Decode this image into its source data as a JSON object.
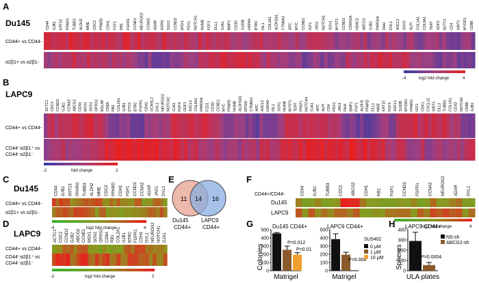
{
  "panels": {
    "A": {
      "letter": "A",
      "title": "Du145",
      "rows": [
        "CD44+ vs CD44-",
        "α2β1+ vs α2β1-"
      ],
      "genes": [
        "CD44",
        "GJB1",
        "KRT15",
        "PPARG",
        "TUBB3",
        "ALDH2",
        "MME",
        "CDC2",
        "PPARD",
        "CDH1",
        "FGF1",
        "RB1",
        "FGFR1",
        "CCNE1",
        "NEUROG2",
        "CCNA2",
        "ADAR",
        "AXIN1",
        "SOX2",
        "CCND2",
        "MSX1",
        "PDX1",
        "NOTCH1",
        "NUMB",
        "FGF3",
        "DLL1",
        "GJA1",
        "BMP3",
        "CD3D",
        "S100B",
        "HSPA9",
        "BTRC",
        "ISL1",
        "COL2A1",
        "ALDH1A1",
        "CTNNA1",
        "APC",
        "MYC",
        "CCNB1",
        "IGF1",
        "JAG1",
        "NOTCH2",
        "SOX1",
        "MYST1",
        "CCND1",
        "CDKN1A",
        "HDAC2",
        "ABCG2",
        "GJB2",
        "PARD6A",
        "DHH",
        "DVL1",
        "ASCL2",
        "SOX2",
        "ALPI",
        "COL1A1",
        "COL9A1",
        "TERT",
        "GDF2",
        "ACTC1",
        "CD4",
        "WNT1",
        "MYOD1",
        "CD8B"
      ],
      "colorbar": {
        "min": "-4",
        "max": "4",
        "label": "log2 fold change"
      }
    },
    "B": {
      "letter": "B",
      "title": "LAPC9",
      "rows": [
        "CD44+ vs CD44-",
        "CD44+α2β1+ vs CD44-α2β1-"
      ],
      "genes": [
        "ACTC1",
        "CDC2",
        "CCND2",
        "GJB2",
        "CCNA2",
        "ABCG2",
        "CD44",
        "MSX1",
        "SOX2",
        "OPRS1",
        "BGLAP",
        "CD8A",
        "RB1",
        "COL2A1",
        "GJB1",
        "DTX2",
        "BTRC",
        "FGFR1",
        "CDH1",
        "GCNSL2",
        "DVL1",
        "NEUROG2",
        "NOTCH2",
        "GJA1",
        "FGF4",
        "GDF3",
        "ASCL2",
        "COL9A1",
        "PARD6A",
        "FZD1",
        "CD3D",
        "CCNE1",
        "MYC",
        "PPARD",
        "NUMB",
        "ALDH1A1",
        "EP300",
        "CTNNA1",
        "APC",
        "ASCL2",
        "HSPA9",
        "ISL1",
        "SOX1",
        "NUMB",
        "MYST1",
        "TERT",
        "FRAT1",
        "NOTCH4",
        "GJA1",
        "APC",
        "ALPI",
        "CD4",
        "PDX1",
        "JAG1",
        "DHH",
        "BMP1",
        "FGF1",
        "ALDH2",
        "PPARD",
        "DLL1",
        "MME",
        "KRT15",
        "FGF2",
        "ASCL1",
        "S100B",
        "MYOD1",
        "PPARG",
        "IGF1",
        "CDK1",
        "CXCL12",
        "WNT1",
        "DLL3",
        "TUBB3",
        "COL1A1",
        "CD3D",
        "NOTCH1",
        "CD8B",
        "GJB1"
      ],
      "colorbar": {
        "min": "-2",
        "max": "2",
        "label": "fold change"
      }
    },
    "C": {
      "letter": "C",
      "title": "Du145",
      "rows": [
        "CD44+ vs CD44-",
        "α2β1+ vs α2β1-"
      ],
      "genes": [
        "CD44",
        "GJB1",
        "KRT15",
        "PPARG",
        "TUBB3",
        "ALDH2",
        "MME",
        "CDC2",
        "PPARD",
        "CDH1",
        "FGF1",
        "CCND2",
        "CCNA2",
        "ADAR",
        "JAG1",
        "DVL1"
      ],
      "colorbar": {
        "min": "-4",
        "max": "4",
        "label": "log2 fold change"
      }
    },
    "D": {
      "letter": "D",
      "title": "LAPC9",
      "rows": [
        "CD44+ vs CD44-",
        "CD44+α2β1+ vs CD44-α2β1-"
      ],
      "genes": [
        "ACTC1",
        "CDC2",
        "CCND2",
        "GJB2",
        "ABCG2",
        "CCNE1",
        "MSX1",
        "SOX2",
        "OPRS1",
        "CD8A",
        "RB1",
        "COL2A1",
        "GJB1",
        "BTRC",
        "FGFR1",
        "CDH1",
        "DVL1",
        "NEUROG2",
        "NOTCH1",
        "GJA1"
      ],
      "colorbar": {
        "min": "-2",
        "max": "2",
        "label": "log2 fold change"
      }
    },
    "E": {
      "letter": "E",
      "left_count": "11",
      "overlap_count": "14",
      "right_count": "16",
      "left_label_1": "Du145",
      "left_label_2": "CD44+",
      "right_label_1": "LAPC9",
      "right_label_2": "CD44+"
    },
    "F": {
      "letter": "F",
      "header": "CD44+/CD44-",
      "rows": [
        "Du145",
        "LAPC9"
      ],
      "genes": [
        "CD44",
        "GJB1",
        "TUBB3",
        "CDC2",
        "ABCG2",
        "CDH1",
        "RB1",
        "FGF1",
        "CCND2",
        "FGFR1",
        "CCNA2",
        "NEUROG2",
        "ADAR",
        "DVL1"
      ],
      "colorbar": {
        "min": "-4",
        "max": "4",
        "label": "log2 fold change"
      }
    },
    "G": {
      "letter": "G",
      "xlabel": "Matrigel",
      "ylabel": "Colonies"
    },
    "H": {
      "letter": "H",
      "xlabel": "ULA plates",
      "ylabel": "Spheres"
    }
  },
  "chart_data": [
    {
      "type": "bar",
      "title": "Du145 CD44+",
      "categories": [
        "0 μM",
        "1 μM",
        "10 μM"
      ],
      "values": [
        455,
        255,
        195
      ],
      "errors": [
        10,
        45,
        25
      ],
      "ylim": [
        0,
        500
      ],
      "yticks": [
        "0",
        "100",
        "200",
        "300",
        "400",
        "500"
      ],
      "colors": [
        "#111111",
        "#8b5a2b",
        "#f0a030"
      ],
      "annotations": [
        "P=0.012",
        "P=0.01"
      ],
      "xlabel": "Matrigel",
      "ylabel": "Colonies"
    },
    {
      "type": "bar",
      "title": "LAPC9 CD44+",
      "legend_title": "SU5402",
      "categories": [
        "0 μM",
        "1 μM"
      ],
      "values": [
        385,
        195
      ],
      "errors": [
        65,
        30
      ],
      "ylim": [
        0,
        500
      ],
      "yticks": [
        "0",
        "100",
        "200",
        "300",
        "400",
        "500"
      ],
      "colors": [
        "#111111",
        "#8b5a2b"
      ],
      "annotations": [
        "P=0.008"
      ],
      "legend": [
        "0 μM",
        "1 μM",
        "10 μM"
      ],
      "xlabel": "Matrigel"
    },
    {
      "type": "bar",
      "title": "LAPC9 CD44+",
      "categories": [
        "NS-sh",
        "ABCG2-sh"
      ],
      "values": [
        290,
        55
      ],
      "errors": [
        85,
        25
      ],
      "ylim": [
        0,
        400
      ],
      "yticks": [
        "0",
        "100",
        "200",
        "300",
        "400"
      ],
      "colors": [
        "#111111",
        "#8b5a2b"
      ],
      "annotations": [
        "P=0.0004"
      ],
      "legend": [
        "NS-sh",
        "ABCG2-sh"
      ],
      "xlabel": "ULA plates",
      "ylabel": "Spheres"
    }
  ]
}
